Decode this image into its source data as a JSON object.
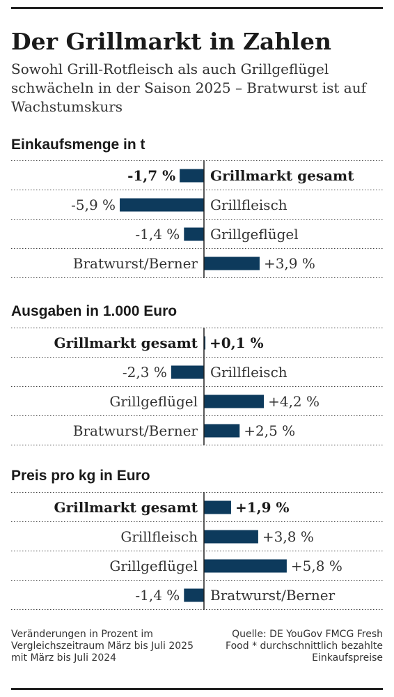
{
  "title": "Der Grillmarkt in Zahlen",
  "subtitle": "Sowohl Grill-Rotfleisch als auch Grillgeflügel schwächeln in der Saison 2025 – Bratwurst ist auf Wachstumskurs",
  "footnote": "Veränderungen in Prozent im Vergleichszeitraum März bis Juli 2025 mit März bis Juli 2024",
  "source": "Quelle: DE YouGov FMCG Fresh Food * durchschnittlich bezahlte Einkaufspreise",
  "colors": {
    "bar": "#0d3a5c",
    "rule": "#222222",
    "dots": "#444444"
  },
  "chart_data": [
    {
      "type": "bar",
      "orientation": "horizontal",
      "title": "Einkaufsmenge in t",
      "unit": "%",
      "categories": [
        "Grillmarkt gesamt",
        "Grillfleisch",
        "Grillgeflügel",
        "Bratwurst/Berner"
      ],
      "values": [
        -1.7,
        -5.9,
        -1.4,
        3.9
      ],
      "value_labels": [
        "-1,7 %",
        "-5,9 %",
        "-1,4 %",
        "+3,9 %"
      ],
      "highlight": [
        true,
        false,
        false,
        false
      ]
    },
    {
      "type": "bar",
      "orientation": "horizontal",
      "title": "Ausgaben in 1.000 Euro",
      "unit": "%",
      "categories": [
        "Grillmarkt gesamt",
        "Grillfleisch",
        "Grillgeflügel",
        "Bratwurst/Berner"
      ],
      "values": [
        0.1,
        -2.3,
        4.2,
        2.5
      ],
      "value_labels": [
        "+0,1 %",
        "-2,3 %",
        "+4,2 %",
        "+2,5 %"
      ],
      "highlight": [
        true,
        false,
        false,
        false
      ]
    },
    {
      "type": "bar",
      "orientation": "horizontal",
      "title": "Preis pro kg in Euro",
      "unit": "%",
      "categories": [
        "Grillmarkt gesamt",
        "Grillfleisch",
        "Grillgeflügel",
        "Bratwurst/Berner"
      ],
      "values": [
        1.9,
        3.8,
        5.8,
        -1.4
      ],
      "value_labels": [
        "+1,9 %",
        "+3,8 %",
        "+5,8 %",
        "-1,4 %"
      ],
      "highlight": [
        true,
        false,
        false,
        false
      ]
    }
  ]
}
